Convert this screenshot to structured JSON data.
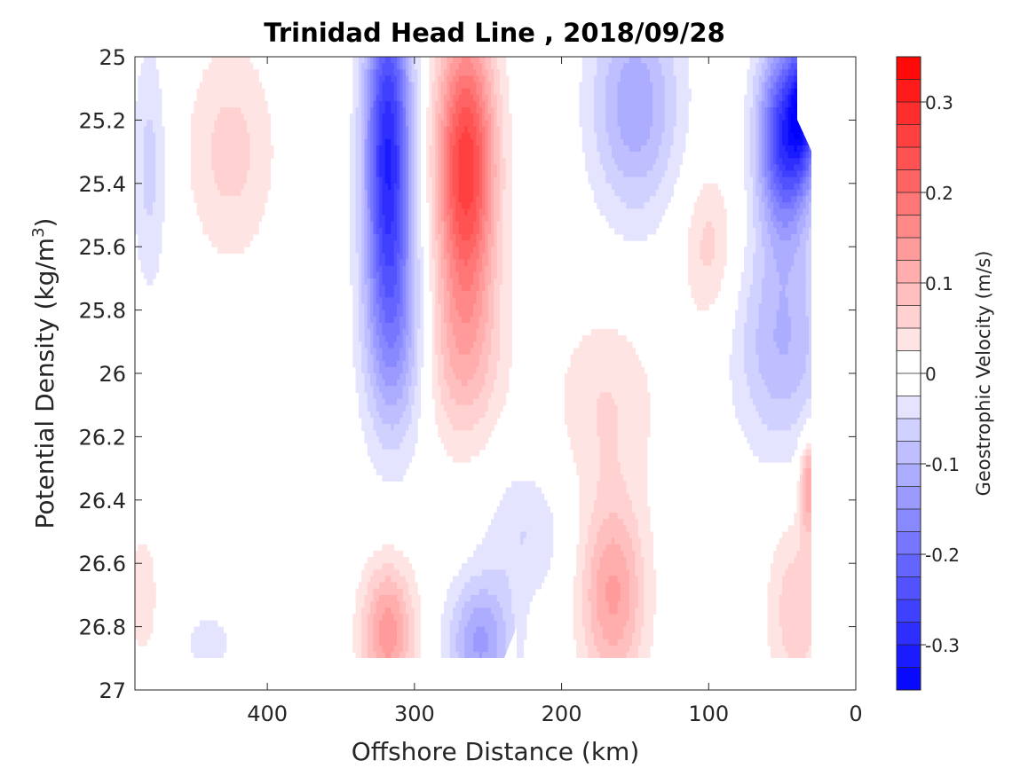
{
  "chart_data": {
    "type": "heatmap",
    "title": "Trinidad Head Line , 2018/09/28",
    "xlabel": "Offshore Distance (km)",
    "ylabel_main": "Potential Density (kg/m",
    "ylabel_sup": "3",
    "ylabel_close": ")",
    "colorbar_label": "Geostrophic Velocity (m/s)",
    "x_axis": {
      "min": 0,
      "max": 490,
      "reversed": true,
      "ticks": [
        400,
        300,
        200,
        100,
        0
      ],
      "tick_labels": [
        "400",
        "300",
        "200",
        "100",
        "0"
      ]
    },
    "y_axis": {
      "min": 25,
      "max": 27,
      "reversed": true,
      "ticks": [
        25,
        25.2,
        25.4,
        25.6,
        25.8,
        26,
        26.2,
        26.4,
        26.6,
        26.8,
        27
      ],
      "tick_labels": [
        "25",
        "25.2",
        "25.4",
        "25.6",
        "25.8",
        "26",
        "26.2",
        "26.4",
        "26.6",
        "26.8",
        "27"
      ]
    },
    "colorbar": {
      "min": -0.35,
      "max": 0.35,
      "step": 0.025,
      "ticks": [
        0.3,
        0.2,
        0.1,
        0,
        -0.1,
        -0.2,
        -0.3
      ],
      "tick_labels": [
        "0.3",
        "0.2",
        "0.1",
        "0",
        "-0.1",
        "-0.2",
        "-0.3"
      ],
      "negative_color": "#0000ff",
      "positive_color": "#ff0000",
      "zero_color": "#ffffff"
    },
    "data_grid": {
      "x": [
        490,
        480,
        470,
        460,
        450,
        440,
        430,
        420,
        410,
        400,
        390,
        380,
        370,
        360,
        350,
        340,
        330,
        320,
        310,
        300,
        290,
        280,
        270,
        260,
        250,
        240,
        230,
        220,
        210,
        200,
        190,
        180,
        170,
        160,
        150,
        140,
        130,
        120,
        110,
        100,
        90,
        80,
        70,
        60,
        50,
        40,
        30
      ],
      "y": [
        25,
        25.1,
        25.2,
        25.3,
        25.4,
        25.5,
        25.6,
        25.7,
        25.8,
        25.9,
        26,
        26.1,
        26.2,
        26.3,
        26.4,
        26.5,
        26.6,
        26.7,
        26.8,
        26.9
      ],
      "features": [
        {
          "x": 318,
          "y": 25.3,
          "sx": 16,
          "sy": 0.55,
          "amp": -0.3
        },
        {
          "x": 312,
          "y": 25.9,
          "sx": 22,
          "sy": 0.35,
          "amp": -0.1
        },
        {
          "x": 265,
          "y": 25.35,
          "sx": 20,
          "sy": 0.45,
          "amp": 0.27
        },
        {
          "x": 268,
          "y": 25.95,
          "sx": 28,
          "sy": 0.3,
          "amp": 0.08
        },
        {
          "x": 425,
          "y": 25.3,
          "sx": 30,
          "sy": 0.35,
          "amp": 0.06
        },
        {
          "x": 480,
          "y": 25.35,
          "sx": 12,
          "sy": 0.4,
          "amp": -0.06
        },
        {
          "x": 150,
          "y": 25.15,
          "sx": 30,
          "sy": 0.35,
          "amp": -0.12
        },
        {
          "x": 48,
          "y": 25.25,
          "sx": 18,
          "sy": 0.3,
          "amp": -0.28
        },
        {
          "x": 50,
          "y": 25.9,
          "sx": 32,
          "sy": 0.35,
          "amp": -0.1
        },
        {
          "x": 35,
          "y": 25.15,
          "sx": 10,
          "sy": 0.2,
          "amp": -0.2
        },
        {
          "x": 100,
          "y": 25.6,
          "sx": 18,
          "sy": 0.25,
          "amp": 0.06
        },
        {
          "x": 165,
          "y": 26.7,
          "sx": 22,
          "sy": 0.3,
          "amp": 0.13
        },
        {
          "x": 170,
          "y": 26.1,
          "sx": 35,
          "sy": 0.3,
          "amp": 0.05
        },
        {
          "x": 318,
          "y": 26.82,
          "sx": 18,
          "sy": 0.22,
          "amp": 0.14
        },
        {
          "x": 255,
          "y": 26.85,
          "sx": 22,
          "sy": 0.2,
          "amp": -0.13
        },
        {
          "x": 225,
          "y": 26.5,
          "sx": 28,
          "sy": 0.22,
          "amp": -0.05
        },
        {
          "x": 40,
          "y": 26.75,
          "sx": 20,
          "sy": 0.3,
          "amp": 0.07
        },
        {
          "x": 32,
          "y": 26.35,
          "sx": 6,
          "sy": 0.15,
          "amp": 0.13
        },
        {
          "x": 440,
          "y": 26.85,
          "sx": 18,
          "sy": 0.1,
          "amp": -0.04
        },
        {
          "x": 485,
          "y": 26.7,
          "sx": 10,
          "sy": 0.2,
          "amp": 0.05
        }
      ]
    }
  }
}
